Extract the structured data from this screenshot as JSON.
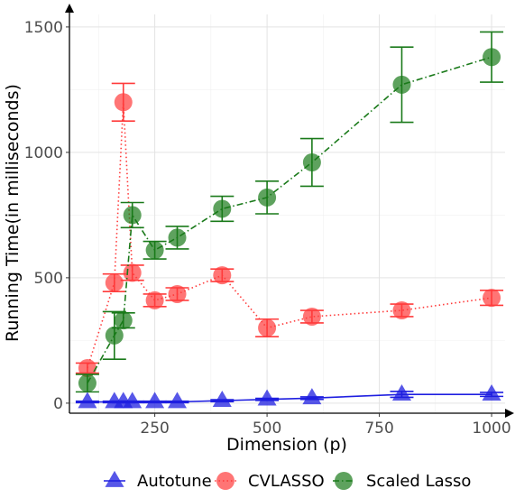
{
  "chart_data": {
    "type": "line",
    "title": "",
    "xlabel": "Dimension (p)",
    "ylabel": "Running Time(in milliseconds)",
    "xlim": [
      60,
      1030
    ],
    "ylim": [
      -40,
      1550
    ],
    "x_ticks": [
      250,
      500,
      750,
      1000
    ],
    "x_tick_labels": [
      "250",
      "500",
      "750",
      "1000"
    ],
    "y_ticks": [
      0,
      500,
      1000,
      1500
    ],
    "y_tick_labels": [
      "0",
      "500",
      "1000",
      "1500"
    ],
    "grid": true,
    "legend_position": "bottom",
    "series": [
      {
        "name": "Autotune",
        "color": "#1f1fe0",
        "marker": "triangle",
        "line_style": "solid",
        "x": [
          100,
          160,
          180,
          200,
          250,
          300,
          400,
          500,
          600,
          800,
          1000
        ],
        "y": [
          5,
          5,
          5,
          5,
          5,
          5,
          10,
          15,
          20,
          35,
          35
        ],
        "err": [
          3,
          3,
          3,
          3,
          3,
          3,
          4,
          4,
          5,
          12,
          8
        ]
      },
      {
        "name": "CVLASSO",
        "color": "#ff3b3b",
        "marker": "circle",
        "line_style": "dotted",
        "x": [
          100,
          160,
          180,
          200,
          250,
          300,
          400,
          500,
          600,
          800,
          1000
        ],
        "y": [
          140,
          480,
          1200,
          520,
          410,
          435,
          510,
          300,
          345,
          370,
          420
        ],
        "err": [
          20,
          35,
          75,
          30,
          25,
          25,
          25,
          35,
          25,
          25,
          30
        ]
      },
      {
        "name": "Scaled Lasso",
        "color": "#1a7a1a",
        "marker": "circle",
        "line_style": "dashdot",
        "x": [
          100,
          160,
          180,
          200,
          250,
          300,
          400,
          500,
          600,
          800,
          1000
        ],
        "y": [
          80,
          270,
          330,
          750,
          610,
          660,
          775,
          820,
          960,
          1270,
          1380
        ],
        "err": [
          35,
          95,
          30,
          50,
          35,
          45,
          50,
          65,
          95,
          150,
          100
        ]
      }
    ]
  }
}
